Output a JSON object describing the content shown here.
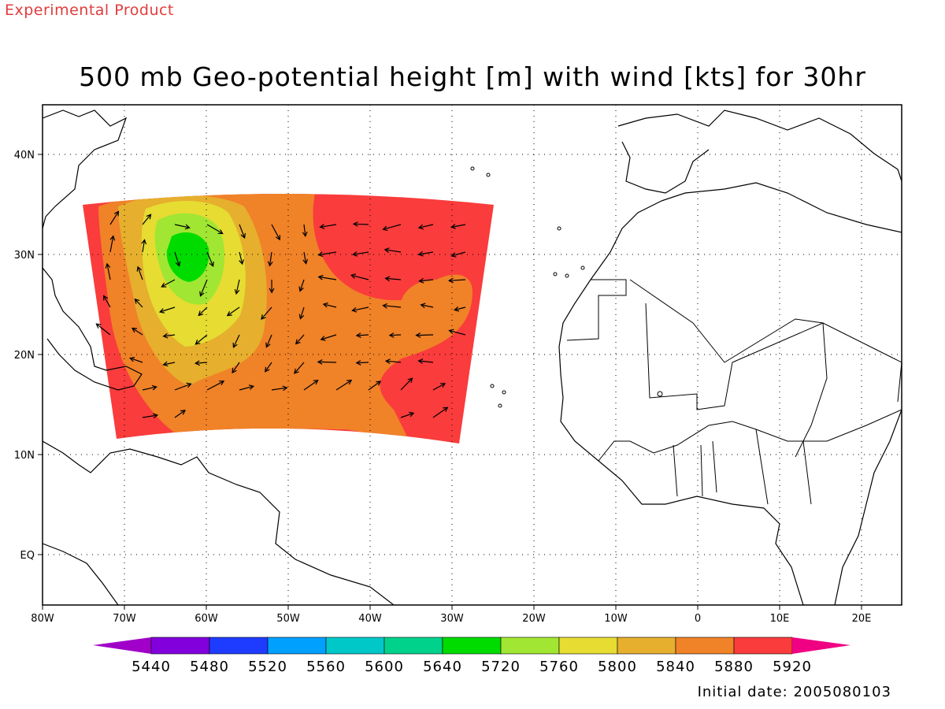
{
  "header": {
    "tag": "Experimental Product",
    "title": "500 mb Geo-potential height [m] with wind [kts] for 30hr"
  },
  "footer": {
    "initial_date": "Initial date: 2005080103"
  },
  "axes": {
    "lon_labels": [
      "80W",
      "70W",
      "60W",
      "50W",
      "40W",
      "30W",
      "20W",
      "10W",
      "0",
      "10E",
      "20E"
    ],
    "lat_labels": [
      "40N",
      "30N",
      "20N",
      "10N",
      "EQ"
    ]
  },
  "colorbar": {
    "labels": [
      "5440",
      "5480",
      "5520",
      "5560",
      "5600",
      "5640",
      "5720",
      "5760",
      "5800",
      "5840",
      "5880",
      "5920"
    ],
    "colors": [
      "#a000c8",
      "#8200dc",
      "#1e3cff",
      "#00a0ff",
      "#00c8c8",
      "#00d28c",
      "#00dc00",
      "#a0e632",
      "#e6dc32",
      "#e6af2d",
      "#f08228",
      "#fa3c3c",
      "#f00082"
    ]
  },
  "map": {
    "region": "North Atlantic / West Africa",
    "contour_field": "500 mb geopotential height",
    "vector_field": "wind"
  }
}
